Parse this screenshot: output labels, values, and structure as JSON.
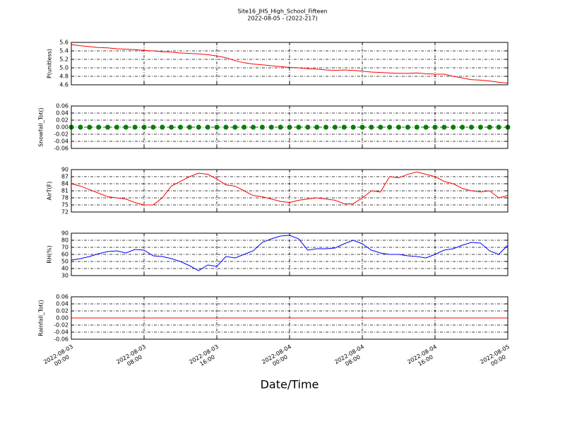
{
  "chart_data": {
    "type": "line",
    "title": "Site16_JHS_High_School_Fifteen",
    "subtitle": "2022-08-05 - (2022-217)",
    "xlabel": "Date/Time",
    "grid": true,
    "xlim": [
      "2022-08-03 00:00",
      "2022-08-05 00:00"
    ],
    "xticks": [
      {
        "value": "2022-08-03 00:00",
        "label": "2022-08-03\n00:00"
      },
      {
        "value": "2022-08-03 08:00",
        "label": "2022-08-03\n08:00"
      },
      {
        "value": "2022-08-03 16:00",
        "label": "2022-08-03\n16:00"
      },
      {
        "value": "2022-08-04 00:00",
        "label": "2022-08-04\n00:00"
      },
      {
        "value": "2022-08-04 08:00",
        "label": "2022-08-04\n08:00"
      },
      {
        "value": "2022-08-04 16:00",
        "label": "2022-08-04\n16:00"
      },
      {
        "value": "2022-08-05 00:00",
        "label": "2022-08-05\n00:00"
      }
    ],
    "x": [
      "2022-08-03 00:00",
      "2022-08-03 01:00",
      "2022-08-03 02:00",
      "2022-08-03 03:00",
      "2022-08-03 04:00",
      "2022-08-03 05:00",
      "2022-08-03 06:00",
      "2022-08-03 07:00",
      "2022-08-03 08:00",
      "2022-08-03 09:00",
      "2022-08-03 10:00",
      "2022-08-03 11:00",
      "2022-08-03 12:00",
      "2022-08-03 13:00",
      "2022-08-03 14:00",
      "2022-08-03 15:00",
      "2022-08-03 16:00",
      "2022-08-03 17:00",
      "2022-08-03 18:00",
      "2022-08-03 19:00",
      "2022-08-03 20:00",
      "2022-08-03 21:00",
      "2022-08-03 22:00",
      "2022-08-03 23:00",
      "2022-08-04 00:00",
      "2022-08-04 01:00",
      "2022-08-04 02:00",
      "2022-08-04 03:00",
      "2022-08-04 04:00",
      "2022-08-04 05:00",
      "2022-08-04 06:00",
      "2022-08-04 07:00",
      "2022-08-04 08:00",
      "2022-08-04 09:00",
      "2022-08-04 10:00",
      "2022-08-04 11:00",
      "2022-08-04 12:00",
      "2022-08-04 13:00",
      "2022-08-04 14:00",
      "2022-08-04 15:00",
      "2022-08-04 16:00",
      "2022-08-04 17:00",
      "2022-08-04 18:00",
      "2022-08-04 19:00",
      "2022-08-04 20:00",
      "2022-08-04 21:00",
      "2022-08-04 22:00",
      "2022-08-04 23:00",
      "2022-08-05 00:00"
    ],
    "panels": [
      {
        "ylabel": "P(unitless)",
        "ylim": [
          4.6,
          5.6
        ],
        "yticks": [
          4.6,
          4.8,
          {
            "value": 5,
            "label": "5.0"
          },
          5.2,
          5.4,
          5.6
        ],
        "series": [
          {
            "color": "#ff0000",
            "values": [
              5.55,
              5.52,
              5.5,
              5.48,
              5.47,
              5.45,
              5.44,
              5.43,
              5.41,
              5.4,
              5.38,
              5.37,
              5.35,
              5.34,
              5.33,
              5.31,
              5.28,
              5.24,
              5.17,
              5.12,
              5.09,
              5.07,
              5.05,
              5.03,
              5.01,
              5.0,
              4.98,
              4.97,
              4.95,
              4.94,
              4.95,
              4.94,
              4.92,
              4.9,
              4.89,
              4.88,
              4.87,
              4.87,
              4.88,
              4.86,
              4.85,
              4.85,
              4.8,
              4.76,
              4.72,
              4.71,
              4.69,
              4.66,
              4.64
            ]
          }
        ]
      },
      {
        "ylabel": "Snowfall_Tot()",
        "ylim": [
          -0.06,
          0.06
        ],
        "yticks": [
          -0.06,
          -0.04,
          -0.02,
          {
            "value": 0,
            "label": "0.00"
          },
          0.02,
          0.04,
          0.06
        ],
        "series": [
          {
            "color": "#008000",
            "marker": true,
            "values": [
              0,
              0,
              0,
              0,
              0,
              0,
              0,
              0,
              0,
              0,
              0,
              0,
              0,
              0,
              0,
              0,
              0,
              0,
              0,
              0,
              0,
              0,
              0,
              0,
              0,
              0,
              0,
              0,
              0,
              0,
              0,
              0,
              0,
              0,
              0,
              0,
              0,
              0,
              0,
              0,
              0,
              0,
              0,
              0,
              0,
              0,
              0,
              0,
              0
            ]
          }
        ]
      },
      {
        "ylabel": "AirT(F)",
        "ylim": [
          72,
          90
        ],
        "yticks": [
          72,
          75,
          78,
          81,
          84,
          87,
          90
        ],
        "series": [
          {
            "color": "#ff0000",
            "values": [
              84,
              83,
              81.5,
              80,
              78.5,
              78,
              77.5,
              76,
              75,
              75,
              78,
              83,
              85,
              87,
              88.5,
              88,
              86,
              83.5,
              83,
              81,
              79,
              78.5,
              77.5,
              76.5,
              76,
              77,
              77.5,
              78,
              77.5,
              77,
              75.5,
              75.5,
              78,
              81,
              80.5,
              87,
              86.5,
              88,
              89,
              88,
              87,
              85,
              84,
              82,
              81,
              80.5,
              81,
              78,
              79
            ]
          }
        ]
      },
      {
        "ylabel": "RH(%)",
        "ylim": [
          30,
          90
        ],
        "yticks": [
          30,
          40,
          50,
          60,
          70,
          80,
          90
        ],
        "series": [
          {
            "color": "#0000ff",
            "values": [
              52,
              54,
              57,
              61,
              64,
              65,
              62,
              67,
              66,
              58,
              57,
              54,
              50,
              44,
              37,
              45,
              43,
              57,
              55,
              60,
              65,
              77,
              82,
              86,
              87,
              82,
              66,
              68,
              68,
              69,
              75,
              80,
              75,
              66,
              62,
              60,
              60,
              58,
              57,
              55,
              60,
              66,
              68,
              73,
              77,
              76,
              65,
              60,
              73
            ]
          }
        ]
      },
      {
        "ylabel": "Rainfall_Tot()",
        "ylim": [
          -0.06,
          0.06
        ],
        "yticks": [
          -0.06,
          -0.04,
          -0.02,
          {
            "value": 0,
            "label": "0.00"
          },
          0.02,
          0.04,
          0.06
        ],
        "series": [
          {
            "color": "#ff0000",
            "values": [
              0,
              0,
              0,
              0,
              0,
              0,
              0,
              0,
              0,
              0,
              0,
              0,
              0,
              0,
              0,
              0,
              0,
              0,
              0,
              0,
              0,
              0,
              0,
              0,
              0,
              0,
              0,
              0,
              0,
              0,
              0,
              0,
              0,
              0,
              0,
              0,
              0,
              0,
              0,
              0,
              0,
              0,
              0,
              0,
              0,
              0,
              0,
              0,
              0
            ]
          }
        ]
      }
    ]
  }
}
